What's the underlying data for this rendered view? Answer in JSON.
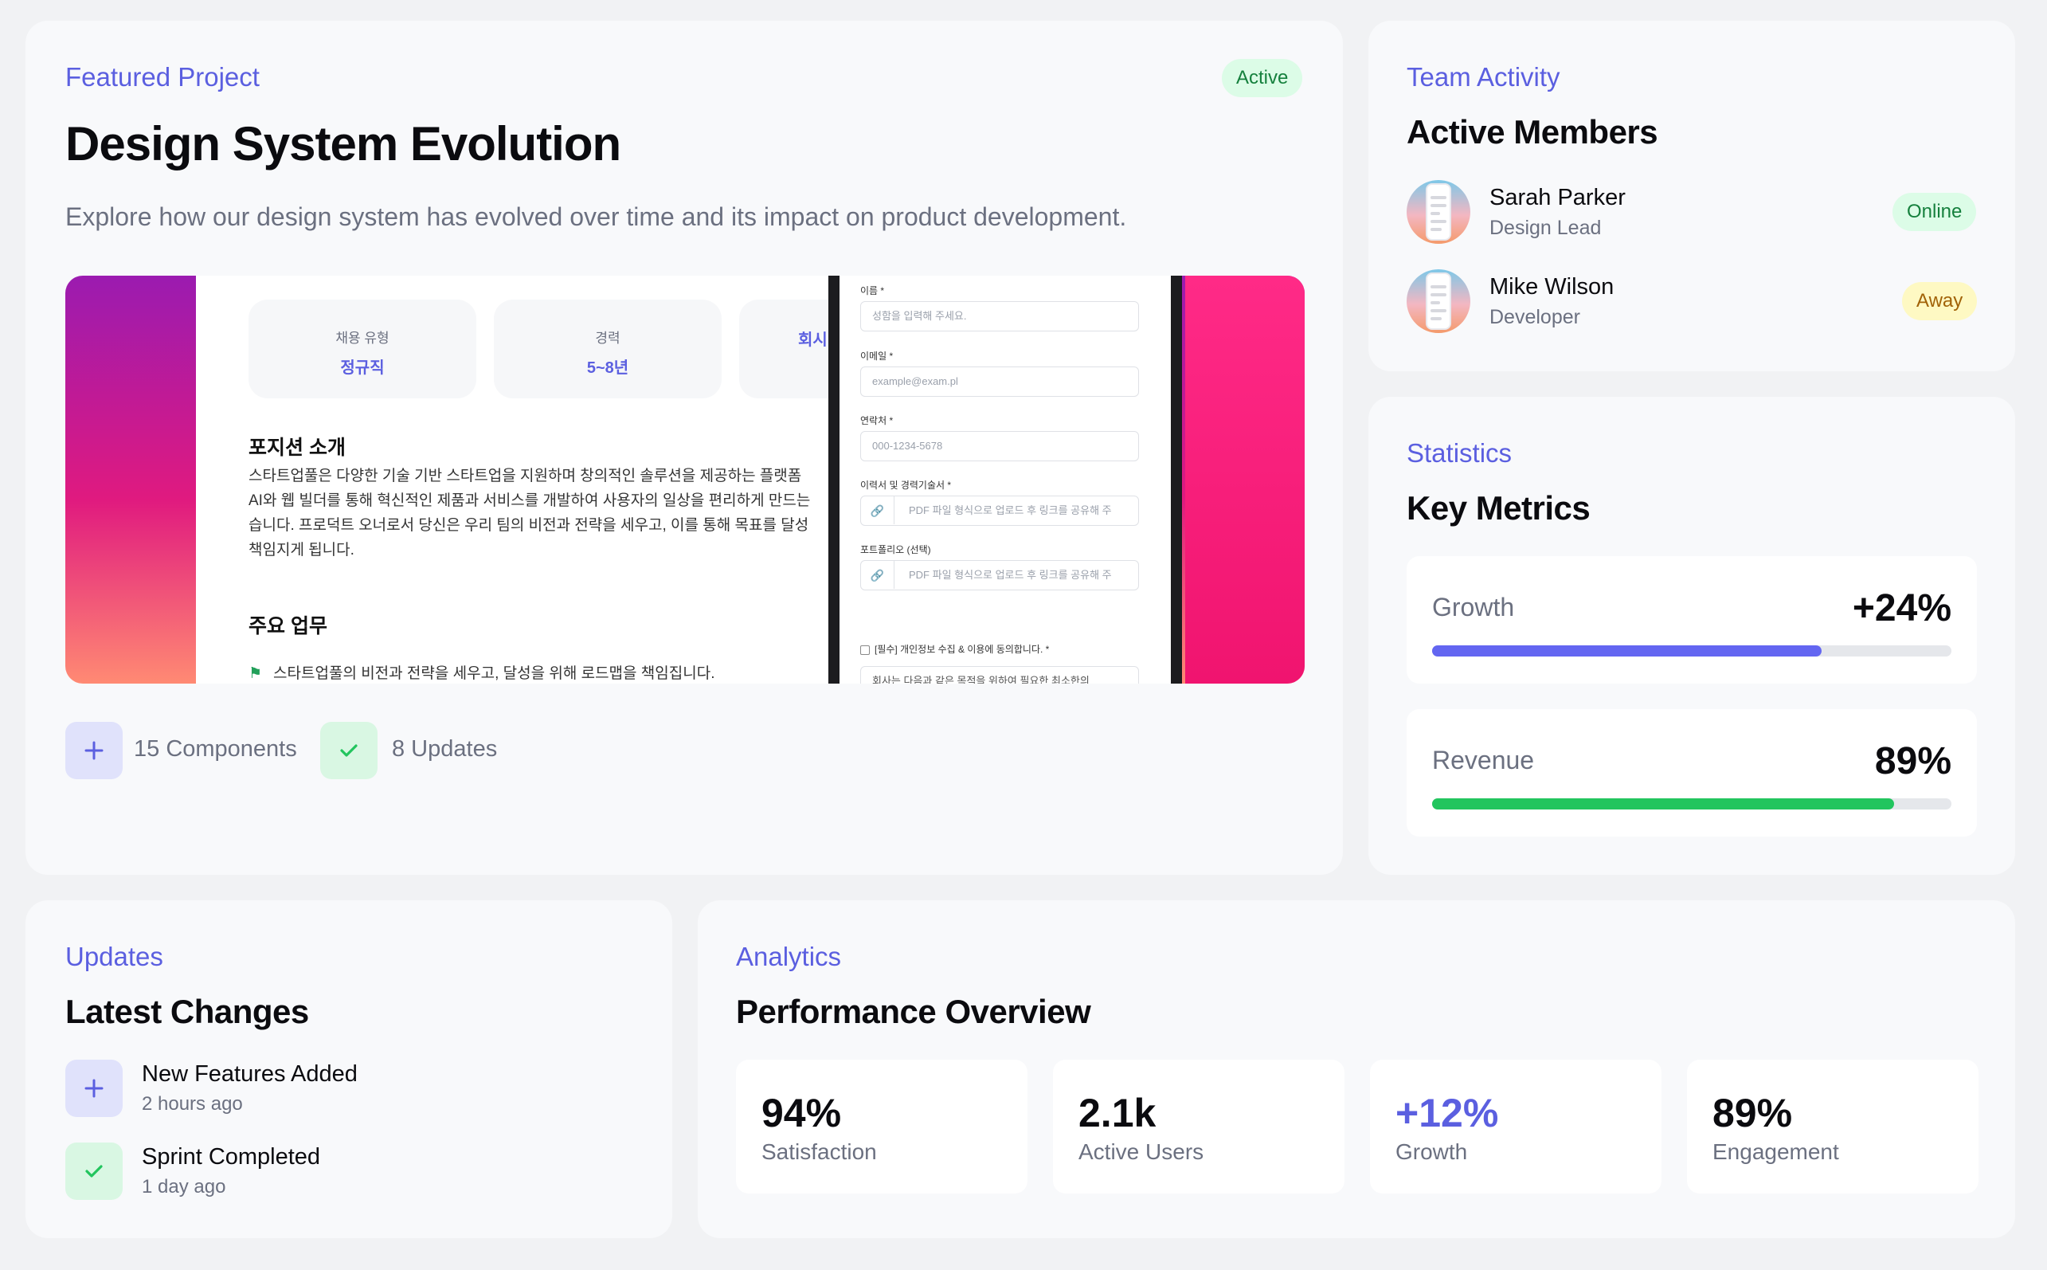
{
  "featured": {
    "eyebrow": "Featured Project",
    "status": "Active",
    "title": "Design System Evolution",
    "description": "Explore how our design system has evolved over time and its impact on product development.",
    "screenshot": {
      "tiles": [
        {
          "label": "채용 유형",
          "value": "정규직"
        },
        {
          "label": "경력",
          "value": "5~8년"
        },
        {
          "label": "",
          "value": "회시"
        }
      ],
      "section1": "포지션 소개",
      "paragraph": [
        "스타트업풀은 다양한 기술 기반 스타트업을 지원하며 창의적인 솔루션을 제공하는 플랫폼",
        "AI와 웹 빌더를 통해 혁신적인 제품과 서비스를 개발하여 사용자의 일상을 편리하게 만드는",
        "습니다. 프로덕트 오너로서 당신은 우리 팀의 비전과 전략을 세우고, 이를 통해 목표를 달성",
        "책임지게 됩니다."
      ],
      "section2": "주요 업무",
      "bullet": "스타트업풀의 비전과 전략을 세우고, 달성을 위해 로드맵을 책임집니다.",
      "form": {
        "name_label": "이름 *",
        "name_placeholder": "성함을 입력해 주세요.",
        "email_label": "이메일 *",
        "email_placeholder": "example@exam.pl",
        "phone_label": "연락처 *",
        "phone_placeholder": "000-1234-5678",
        "resume_label": "이력서 및 경력기술서 *",
        "resume_placeholder": "PDF 파일 형식으로 업로드 후 링크를 공유해 주",
        "portfolio_label": "포트폴리오 (선택)",
        "portfolio_placeholder": "PDF 파일 형식으로 업로드 후 링크를 공유해 주",
        "consent": "[필수] 개인정보 수집 & 이용에 동의합니다. *",
        "consent_text": "회사는 다음과 같은 목적을 위하여 필요한 최소한의"
      }
    },
    "components_count": "15 Components",
    "updates_count": "8 Updates"
  },
  "team": {
    "eyebrow": "Team Activity",
    "title": "Active Members",
    "members": [
      {
        "name": "Sarah Parker",
        "role": "Design Lead",
        "status": "Online"
      },
      {
        "name": "Mike Wilson",
        "role": "Developer",
        "status": "Away"
      }
    ]
  },
  "statistics": {
    "eyebrow": "Statistics",
    "title": "Key Metrics",
    "metrics": [
      {
        "label": "Growth",
        "value": "+24%",
        "progress": 0.75,
        "color": "#6366f1"
      },
      {
        "label": "Revenue",
        "value": "89%",
        "progress": 0.89,
        "color": "#22c55e"
      }
    ]
  },
  "updates": {
    "eyebrow": "Updates",
    "title": "Latest Changes",
    "items": [
      {
        "title": "New Features Added",
        "time": "2 hours ago",
        "icon": "plus-icon"
      },
      {
        "title": "Sprint Completed",
        "time": "1 day ago",
        "icon": "check-icon"
      }
    ]
  },
  "analytics": {
    "eyebrow": "Analytics",
    "title": "Performance Overview",
    "stats": [
      {
        "value": "94%",
        "label": "Satisfaction"
      },
      {
        "value": "2.1k",
        "label": "Active Users"
      },
      {
        "value": "+12%",
        "label": "Growth"
      },
      {
        "value": "89%",
        "label": "Engagement"
      }
    ]
  },
  "colors": {
    "accent": "#5b5fe0",
    "success": "#22c55e",
    "warning": "#a16207"
  }
}
